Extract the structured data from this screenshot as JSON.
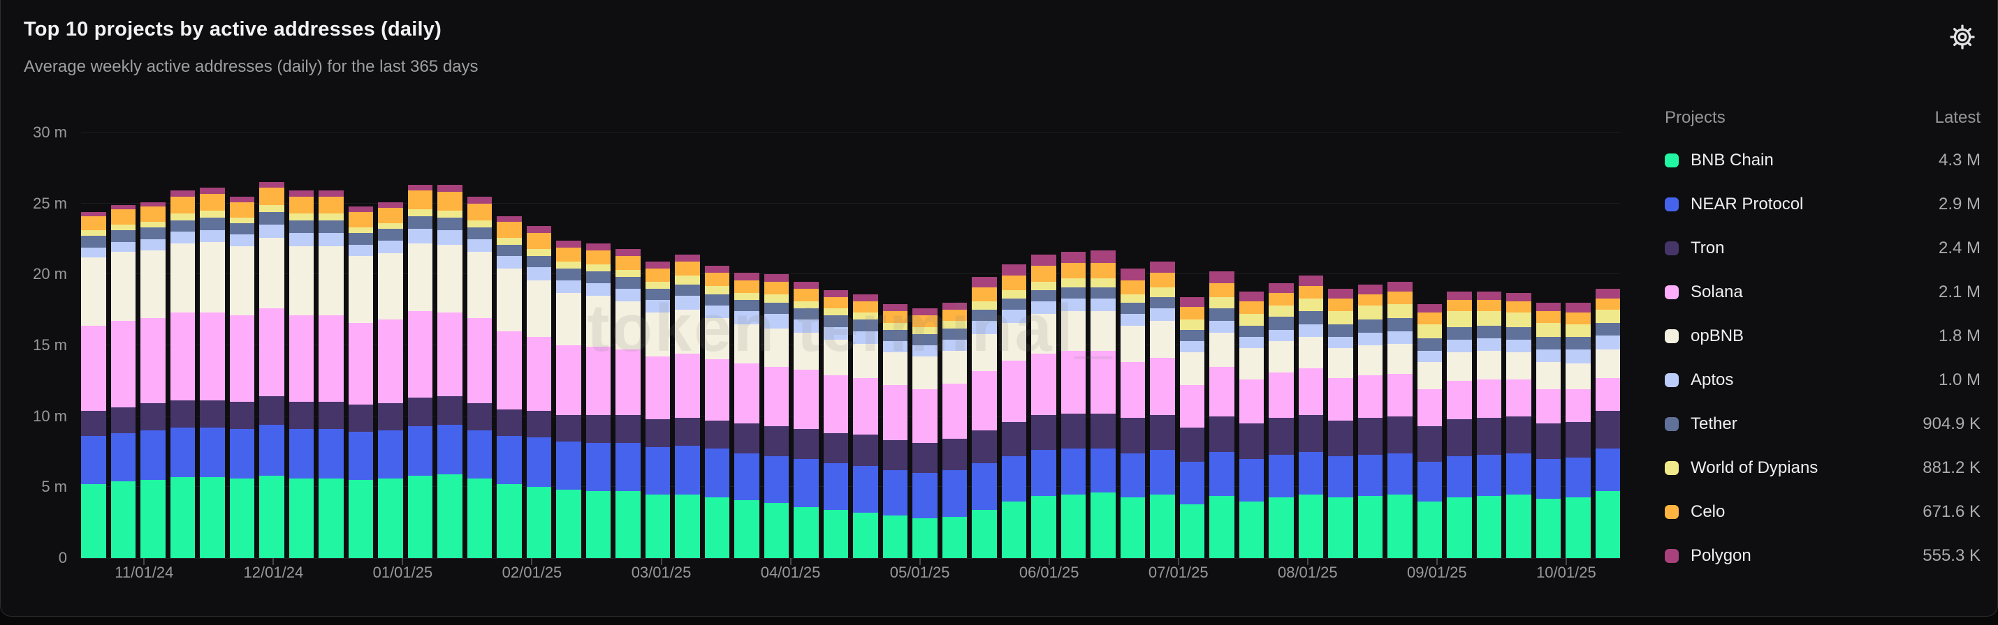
{
  "header": {
    "title": "Top 10 projects by active addresses (daily)",
    "subtitle": "Average weekly active addresses (daily) for the last 365 days"
  },
  "watermark": "token terminal_",
  "legend": {
    "col_projects": "Projects",
    "col_latest": "Latest",
    "items": [
      {
        "name": "BNB Chain",
        "latest": "4.3 M",
        "color": "#21F6A3"
      },
      {
        "name": "NEAR Protocol",
        "latest": "2.9 M",
        "color": "#4663EE"
      },
      {
        "name": "Tron",
        "latest": "2.4 M",
        "color": "#463568"
      },
      {
        "name": "Solana",
        "latest": "2.1 M",
        "color": "#FDADF9"
      },
      {
        "name": "opBNB",
        "latest": "1.8 M",
        "color": "#F5F1E1"
      },
      {
        "name": "Aptos",
        "latest": "1.0 M",
        "color": "#BDCDF9"
      },
      {
        "name": "Tether",
        "latest": "904.9 K",
        "color": "#60719A"
      },
      {
        "name": "World of Dypians",
        "latest": "881.2 K",
        "color": "#F0E98C"
      },
      {
        "name": "Celo",
        "latest": "671.6 K",
        "color": "#FFB340"
      },
      {
        "name": "Polygon",
        "latest": "555.3 K",
        "color": "#A7427C"
      }
    ]
  },
  "chart_data": {
    "type": "bar",
    "stacked": true,
    "title": "Top 10 projects by active addresses (daily)",
    "ylabel": "active addresses (daily)",
    "unit": "millions",
    "ylim": [
      0,
      30
    ],
    "grid": true,
    "legend_position": "right",
    "weeks": 52,
    "y_ticks": [
      {
        "value": 0,
        "label": "0"
      },
      {
        "value": 5,
        "label": "5 m"
      },
      {
        "value": 10,
        "label": "10 m"
      },
      {
        "value": 15,
        "label": "15 m"
      },
      {
        "value": 20,
        "label": "20 m"
      },
      {
        "value": 25,
        "label": "25 m"
      },
      {
        "value": 30,
        "label": "30 m"
      }
    ],
    "x_ticks": [
      {
        "label": "11/01/24",
        "pos_pct": 4.1
      },
      {
        "label": "12/01/24",
        "pos_pct": 12.5
      },
      {
        "label": "01/01/25",
        "pos_pct": 20.9
      },
      {
        "label": "02/01/25",
        "pos_pct": 29.3
      },
      {
        "label": "03/01/25",
        "pos_pct": 37.7
      },
      {
        "label": "04/01/25",
        "pos_pct": 46.1
      },
      {
        "label": "05/01/25",
        "pos_pct": 54.5
      },
      {
        "label": "06/01/25",
        "pos_pct": 62.9
      },
      {
        "label": "07/01/25",
        "pos_pct": 71.3
      },
      {
        "label": "08/01/25",
        "pos_pct": 79.7
      },
      {
        "label": "09/01/25",
        "pos_pct": 88.1
      },
      {
        "label": "10/01/25",
        "pos_pct": 96.5
      }
    ],
    "series": [
      {
        "name": "BNB Chain",
        "color": "#21F6A3",
        "values": [
          5.2,
          5.4,
          5.5,
          5.7,
          5.7,
          5.6,
          5.8,
          5.6,
          5.6,
          5.5,
          5.6,
          5.8,
          5.9,
          5.6,
          5.2,
          5.0,
          4.8,
          4.7,
          4.7,
          4.5,
          4.5,
          4.3,
          4.1,
          3.9,
          3.6,
          3.4,
          3.2,
          3.0,
          2.8,
          2.9,
          3.4,
          4.0,
          4.4,
          4.5,
          4.6,
          4.3,
          4.5,
          3.8,
          4.4,
          4.0,
          4.3,
          4.5,
          4.3,
          4.4,
          4.5,
          4.0,
          4.3,
          4.4,
          4.5,
          4.2,
          4.3,
          4.7
        ]
      },
      {
        "name": "NEAR Protocol",
        "color": "#4663EE",
        "values": [
          3.4,
          3.4,
          3.5,
          3.5,
          3.5,
          3.5,
          3.6,
          3.5,
          3.5,
          3.4,
          3.4,
          3.5,
          3.5,
          3.4,
          3.4,
          3.5,
          3.4,
          3.4,
          3.4,
          3.3,
          3.4,
          3.4,
          3.3,
          3.3,
          3.4,
          3.3,
          3.3,
          3.2,
          3.2,
          3.3,
          3.3,
          3.2,
          3.2,
          3.2,
          3.1,
          3.1,
          3.1,
          3.0,
          3.1,
          3.0,
          3.0,
          3.0,
          2.9,
          2.9,
          2.9,
          2.8,
          2.9,
          2.9,
          2.9,
          2.8,
          2.8,
          3.0
        ]
      },
      {
        "name": "Tron",
        "color": "#463568",
        "values": [
          1.8,
          1.8,
          1.9,
          1.9,
          1.9,
          1.9,
          2.0,
          1.9,
          1.9,
          1.9,
          1.9,
          2.0,
          2.0,
          1.9,
          1.9,
          1.9,
          1.9,
          2.0,
          2.0,
          2.0,
          2.0,
          2.0,
          2.1,
          2.1,
          2.1,
          2.1,
          2.2,
          2.1,
          2.1,
          2.2,
          2.3,
          2.4,
          2.5,
          2.5,
          2.5,
          2.5,
          2.5,
          2.4,
          2.5,
          2.5,
          2.6,
          2.6,
          2.5,
          2.6,
          2.6,
          2.5,
          2.6,
          2.6,
          2.6,
          2.5,
          2.5,
          2.7
        ]
      },
      {
        "name": "Solana",
        "color": "#FDADF9",
        "values": [
          6.0,
          6.1,
          6.0,
          6.2,
          6.2,
          6.1,
          6.2,
          6.1,
          6.1,
          5.8,
          5.9,
          6.1,
          5.9,
          6.0,
          5.5,
          5.2,
          4.9,
          4.8,
          4.6,
          4.4,
          4.5,
          4.3,
          4.2,
          4.2,
          4.2,
          4.1,
          4.0,
          3.9,
          3.8,
          3.9,
          4.2,
          4.3,
          4.3,
          4.4,
          4.4,
          3.9,
          4.0,
          3.0,
          3.5,
          3.1,
          3.2,
          3.3,
          3.0,
          3.0,
          3.0,
          2.6,
          2.7,
          2.7,
          2.6,
          2.4,
          2.3,
          2.3
        ]
      },
      {
        "name": "opBNB",
        "color": "#F5F1E1",
        "values": [
          4.8,
          4.9,
          4.8,
          4.9,
          5.0,
          4.9,
          5.0,
          4.9,
          4.9,
          4.7,
          4.7,
          4.8,
          4.8,
          4.7,
          4.4,
          4.0,
          3.7,
          3.6,
          3.4,
          3.1,
          3.1,
          2.9,
          2.8,
          2.7,
          2.6,
          2.5,
          2.4,
          2.3,
          2.3,
          2.3,
          2.6,
          2.7,
          2.8,
          2.8,
          2.8,
          2.6,
          2.6,
          2.3,
          2.4,
          2.2,
          2.2,
          2.2,
          2.1,
          2.1,
          2.1,
          1.9,
          2.0,
          2.0,
          1.9,
          1.9,
          1.8,
          2.0
        ]
      },
      {
        "name": "Aptos",
        "color": "#BDCDF9",
        "values": [
          0.7,
          0.7,
          0.8,
          0.8,
          0.8,
          0.8,
          0.9,
          0.9,
          0.9,
          0.8,
          0.9,
          1.0,
          1.0,
          0.9,
          0.9,
          0.9,
          0.9,
          0.9,
          0.9,
          0.9,
          1.0,
          0.9,
          0.9,
          1.0,
          0.9,
          0.9,
          0.9,
          0.8,
          0.8,
          0.8,
          0.9,
          0.9,
          0.9,
          0.9,
          0.9,
          0.8,
          0.9,
          0.8,
          0.8,
          0.8,
          0.8,
          0.9,
          0.8,
          0.9,
          0.9,
          0.8,
          0.9,
          0.9,
          0.9,
          0.9,
          1.0,
          1.0
        ]
      },
      {
        "name": "Tether",
        "color": "#60719A",
        "values": [
          0.8,
          0.8,
          0.8,
          0.8,
          0.9,
          0.8,
          0.9,
          0.9,
          0.9,
          0.8,
          0.8,
          0.9,
          0.9,
          0.8,
          0.8,
          0.8,
          0.8,
          0.8,
          0.8,
          0.8,
          0.8,
          0.8,
          0.8,
          0.8,
          0.8,
          0.8,
          0.8,
          0.8,
          0.8,
          0.8,
          0.8,
          0.8,
          0.8,
          0.8,
          0.8,
          0.8,
          0.8,
          0.8,
          0.9,
          0.8,
          0.9,
          0.9,
          0.9,
          0.9,
          0.9,
          0.9,
          0.9,
          0.9,
          0.9,
          0.9,
          0.9,
          0.9
        ]
      },
      {
        "name": "World of Dypians",
        "color": "#F0E98C",
        "values": [
          0.4,
          0.4,
          0.4,
          0.5,
          0.5,
          0.4,
          0.5,
          0.5,
          0.5,
          0.4,
          0.4,
          0.5,
          0.5,
          0.5,
          0.5,
          0.5,
          0.5,
          0.5,
          0.5,
          0.5,
          0.6,
          0.6,
          0.5,
          0.6,
          0.5,
          0.5,
          0.5,
          0.5,
          0.5,
          0.5,
          0.6,
          0.6,
          0.6,
          0.6,
          0.6,
          0.6,
          0.7,
          0.7,
          0.8,
          0.8,
          0.8,
          0.9,
          0.9,
          1.0,
          1.0,
          1.0,
          1.1,
          1.0,
          1.0,
          1.0,
          0.9,
          0.9
        ]
      },
      {
        "name": "Celo",
        "color": "#FFB340",
        "values": [
          1.0,
          1.1,
          1.1,
          1.2,
          1.2,
          1.1,
          1.2,
          1.2,
          1.2,
          1.1,
          1.1,
          1.3,
          1.3,
          1.2,
          1.1,
          1.1,
          1.0,
          1.0,
          1.0,
          0.9,
          1.0,
          0.9,
          0.9,
          0.9,
          0.9,
          0.8,
          0.8,
          0.8,
          0.8,
          0.8,
          1.0,
          1.0,
          1.1,
          1.1,
          1.1,
          1.0,
          1.0,
          0.9,
          1.0,
          0.9,
          0.9,
          0.9,
          0.9,
          0.8,
          0.9,
          0.8,
          0.8,
          0.8,
          0.8,
          0.8,
          0.8,
          0.8
        ]
      },
      {
        "name": "Polygon",
        "color": "#A7427C",
        "values": [
          0.3,
          0.3,
          0.3,
          0.4,
          0.4,
          0.4,
          0.4,
          0.4,
          0.4,
          0.4,
          0.4,
          0.4,
          0.5,
          0.5,
          0.4,
          0.5,
          0.5,
          0.5,
          0.5,
          0.5,
          0.5,
          0.5,
          0.5,
          0.5,
          0.5,
          0.5,
          0.5,
          0.5,
          0.5,
          0.5,
          0.7,
          0.8,
          0.8,
          0.8,
          0.9,
          0.8,
          0.8,
          0.7,
          0.8,
          0.7,
          0.7,
          0.7,
          0.7,
          0.7,
          0.7,
          0.6,
          0.6,
          0.6,
          0.6,
          0.6,
          0.7,
          0.7
        ]
      }
    ]
  }
}
